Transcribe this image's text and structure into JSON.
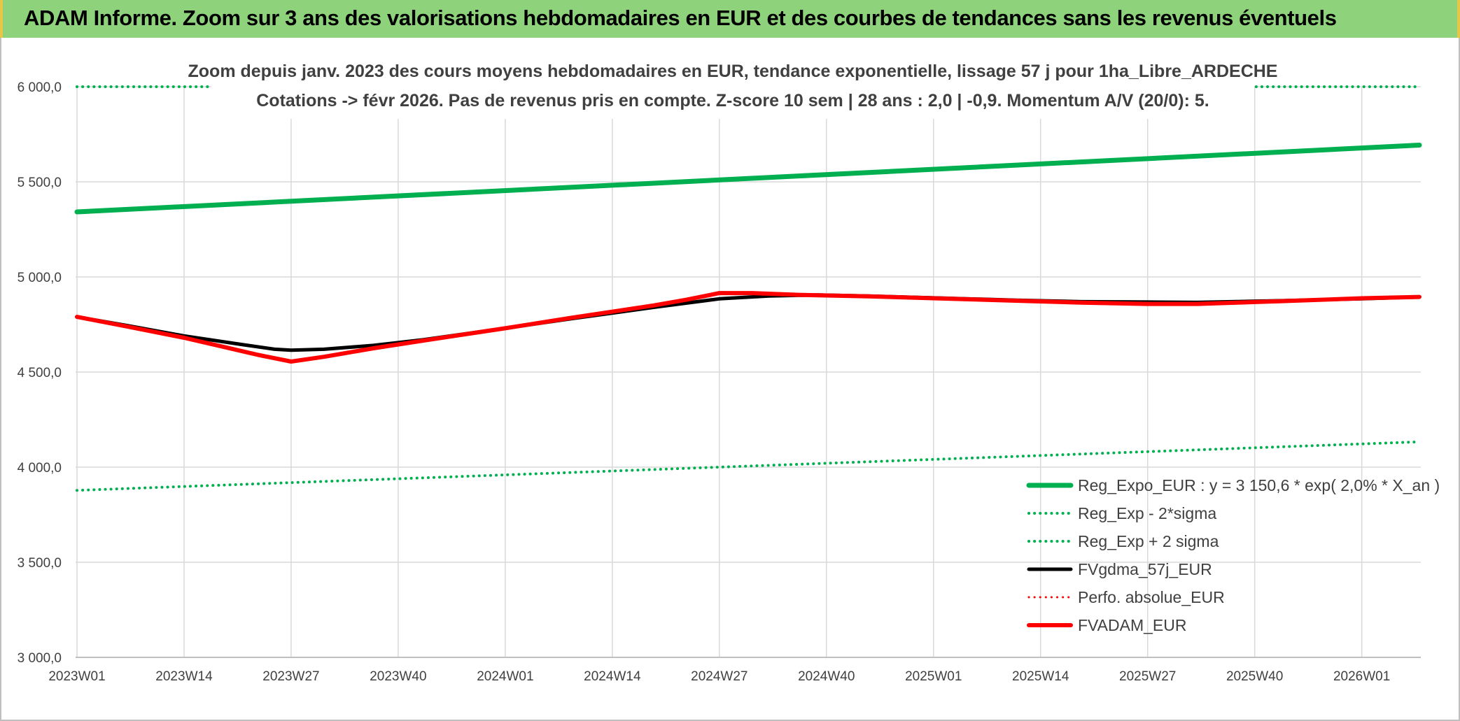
{
  "banner": {
    "title": "ADAM Informe. Zoom sur 3 ans des valorisations hebdomadaires en EUR et des courbes de tendances sans les revenus éventuels"
  },
  "chart_data": {
    "type": "line",
    "title_line1": "Zoom depuis janv. 2023 des cours moyens hebdomadaires en EUR, tendance exponentielle, lissage 57 j pour 1ha_Libre_ARDECHE",
    "title_line2": "Cotations -> févr 2026. Pas de revenus pris en compte. Z-score 10 sem | 28 ans : 2,0 | -0,9. Momentum A/V (20/0): 5.",
    "xlabel": "",
    "ylabel": "",
    "ylim": [
      3000,
      6000
    ],
    "yticks": [
      "3 000,0",
      "3 500,0",
      "4 000,0",
      "4 500,0",
      "5 000,0",
      "5 500,0",
      "6 000,0"
    ],
    "ytick_values": [
      3000,
      3500,
      4000,
      4500,
      5000,
      5500,
      6000
    ],
    "xticks": [
      "2023W01",
      "2023W14",
      "2023W27",
      "2023W40",
      "2024W01",
      "2024W14",
      "2024W27",
      "2024W40",
      "2025W01",
      "2025W14",
      "2025W27",
      "2025W40",
      "2026W01"
    ],
    "xtick_weeks": [
      0,
      13,
      26,
      39,
      52,
      65,
      78,
      91,
      104,
      117,
      130,
      143,
      156
    ],
    "xmax_week": 163,
    "grid": true,
    "legend_position": "bottom-right",
    "series": [
      {
        "name": "Reg_Expo_EUR : y = 3 150,6 * exp( 2,0% *  X_an )",
        "color": "#00b050",
        "style": "solid",
        "width": 7,
        "points": [
          [
            0,
            5342
          ],
          [
            163,
            5693
          ]
        ]
      },
      {
        "name": "Reg_Exp - 2*sigma",
        "color": "#00b050",
        "style": "dotted",
        "width": 4,
        "points": [
          [
            0,
            3878
          ],
          [
            163,
            4133
          ]
        ]
      },
      {
        "name": "Reg_Exp + 2 sigma",
        "color": "#00b050",
        "style": "dotted",
        "width": 4,
        "points": [
          [
            0,
            6000
          ],
          [
            17,
            6000
          ],
          [
            142,
            6000
          ],
          [
            163,
            6000
          ]
        ]
      },
      {
        "name": "FVgdma_57j_EUR",
        "color": "#000000",
        "style": "solid",
        "width": 5,
        "points": [
          [
            0,
            4790
          ],
          [
            6,
            4745
          ],
          [
            13,
            4690
          ],
          [
            20,
            4645
          ],
          [
            24,
            4620
          ],
          [
            26,
            4615
          ],
          [
            30,
            4620
          ],
          [
            36,
            4640
          ],
          [
            42,
            4670
          ],
          [
            52,
            4730
          ],
          [
            60,
            4780
          ],
          [
            70,
            4840
          ],
          [
            78,
            4885
          ],
          [
            84,
            4900
          ],
          [
            90,
            4905
          ],
          [
            96,
            4900
          ],
          [
            104,
            4890
          ],
          [
            114,
            4878
          ],
          [
            122,
            4870
          ],
          [
            130,
            4868
          ],
          [
            136,
            4866
          ],
          [
            146,
            4875
          ],
          [
            156,
            4885
          ],
          [
            163,
            4895
          ]
        ]
      },
      {
        "name": "Perfo. absolue_EUR",
        "color": "#ff0000",
        "style": "dotted",
        "width": 3,
        "points": []
      },
      {
        "name": "FVADAM_EUR",
        "color": "#ff0000",
        "style": "solid",
        "width": 6,
        "points": [
          [
            0,
            4790
          ],
          [
            6,
            4740
          ],
          [
            13,
            4680
          ],
          [
            18,
            4630
          ],
          [
            22,
            4590
          ],
          [
            26,
            4555
          ],
          [
            30,
            4580
          ],
          [
            36,
            4625
          ],
          [
            42,
            4665
          ],
          [
            52,
            4730
          ],
          [
            60,
            4785
          ],
          [
            70,
            4850
          ],
          [
            74,
            4880
          ],
          [
            78,
            4915
          ],
          [
            82,
            4915
          ],
          [
            88,
            4905
          ],
          [
            96,
            4898
          ],
          [
            104,
            4888
          ],
          [
            114,
            4875
          ],
          [
            122,
            4865
          ],
          [
            130,
            4858
          ],
          [
            136,
            4858
          ],
          [
            146,
            4872
          ],
          [
            156,
            4888
          ],
          [
            163,
            4895
          ]
        ]
      }
    ]
  }
}
